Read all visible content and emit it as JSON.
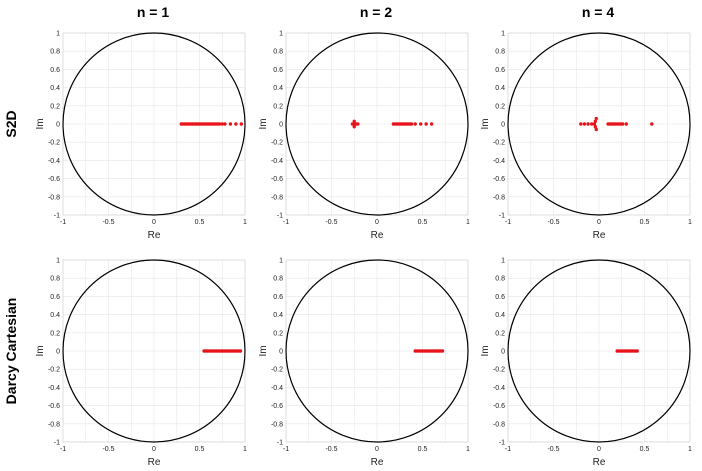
{
  "figure": {
    "col_titles": [
      "n = 1",
      "n = 2",
      "n = 4"
    ],
    "row_titles": [
      "S2D",
      "Darcy Cartesian"
    ]
  },
  "colors": {
    "points": "#e8141b",
    "circle": "#000000",
    "grid": "#e6e6e6"
  },
  "chart_data": [
    {
      "type": "scatter",
      "row": "S2D",
      "col": "n = 1",
      "xlabel": "Re",
      "ylabel": "Im",
      "xlim": [
        -1,
        1
      ],
      "ylim": [
        -1,
        1
      ],
      "xticks": [
        "-1",
        "-0.5",
        "0",
        "0.5",
        "1"
      ],
      "yticks": [
        "1",
        "0.8",
        "0.6",
        "0.4",
        "0.2",
        "0",
        "-0.2",
        "-0.4",
        "-0.6",
        "-0.8",
        "-1"
      ],
      "points": [
        [
          0.3,
          0
        ],
        [
          0.32,
          0
        ],
        [
          0.34,
          0
        ],
        [
          0.36,
          0
        ],
        [
          0.38,
          0
        ],
        [
          0.4,
          0
        ],
        [
          0.42,
          0
        ],
        [
          0.44,
          0
        ],
        [
          0.46,
          0
        ],
        [
          0.48,
          0
        ],
        [
          0.5,
          0
        ],
        [
          0.52,
          0
        ],
        [
          0.54,
          0
        ],
        [
          0.56,
          0
        ],
        [
          0.58,
          0
        ],
        [
          0.6,
          0
        ],
        [
          0.62,
          0
        ],
        [
          0.64,
          0
        ],
        [
          0.66,
          0
        ],
        [
          0.68,
          0
        ],
        [
          0.7,
          0
        ],
        [
          0.72,
          0
        ],
        [
          0.75,
          0
        ],
        [
          0.78,
          0
        ],
        [
          0.84,
          0
        ],
        [
          0.9,
          0
        ],
        [
          0.96,
          0
        ]
      ]
    },
    {
      "type": "scatter",
      "row": "S2D",
      "col": "n = 2",
      "xlabel": "Re",
      "ylabel": "Im",
      "xlim": [
        -1,
        1
      ],
      "ylim": [
        -1,
        1
      ],
      "xticks": [
        "-1",
        "-0.5",
        "0",
        "0.5",
        "1"
      ],
      "yticks": [
        "1",
        "0.8",
        "0.6",
        "0.4",
        "0.2",
        "0",
        "-0.2",
        "-0.4",
        "-0.6",
        "-0.8",
        "-1"
      ],
      "points": [
        [
          -0.27,
          0
        ],
        [
          -0.25,
          0
        ],
        [
          -0.23,
          0
        ],
        [
          -0.21,
          0
        ],
        [
          -0.25,
          0.03
        ],
        [
          -0.25,
          -0.03
        ],
        [
          0.18,
          0
        ],
        [
          0.2,
          0
        ],
        [
          0.22,
          0
        ],
        [
          0.24,
          0
        ],
        [
          0.26,
          0
        ],
        [
          0.28,
          0
        ],
        [
          0.3,
          0
        ],
        [
          0.32,
          0
        ],
        [
          0.34,
          0
        ],
        [
          0.36,
          0
        ],
        [
          0.38,
          0
        ],
        [
          0.42,
          0
        ],
        [
          0.48,
          0
        ],
        [
          0.54,
          0
        ],
        [
          0.6,
          0
        ]
      ]
    },
    {
      "type": "scatter",
      "row": "S2D",
      "col": "n = 4",
      "xlabel": "Re",
      "ylabel": "Im",
      "xlim": [
        -1,
        1
      ],
      "ylim": [
        -1,
        1
      ],
      "xticks": [
        "-1",
        "-0.5",
        "0",
        "0.5",
        "1"
      ],
      "yticks": [
        "1",
        "0.8",
        "0.6",
        "0.4",
        "0.2",
        "0",
        "-0.2",
        "-0.4",
        "-0.6",
        "-0.8",
        "-1"
      ],
      "points": [
        [
          -0.2,
          0
        ],
        [
          -0.16,
          0
        ],
        [
          -0.12,
          0
        ],
        [
          -0.08,
          0
        ],
        [
          -0.05,
          0
        ],
        [
          -0.03,
          0.06
        ],
        [
          -0.04,
          0.03
        ],
        [
          -0.04,
          -0.03
        ],
        [
          -0.03,
          -0.06
        ],
        [
          0.1,
          0
        ],
        [
          0.12,
          0
        ],
        [
          0.14,
          0
        ],
        [
          0.16,
          0
        ],
        [
          0.18,
          0
        ],
        [
          0.2,
          0
        ],
        [
          0.22,
          0
        ],
        [
          0.24,
          0
        ],
        [
          0.26,
          0
        ],
        [
          0.3,
          0
        ],
        [
          0.58,
          0
        ]
      ]
    },
    {
      "type": "scatter",
      "row": "Darcy Cartesian",
      "col": "n = 1",
      "xlabel": "Re",
      "ylabel": "Im",
      "xlim": [
        -1,
        1
      ],
      "ylim": [
        -1,
        1
      ],
      "xticks": [
        "-1",
        "-0.5",
        "0",
        "0.5",
        "1"
      ],
      "yticks": [
        "1",
        "0.8",
        "0.6",
        "0.4",
        "0.2",
        "0",
        "-0.2",
        "-0.4",
        "-0.6",
        "-0.8",
        "-1"
      ],
      "points": [
        [
          0.55,
          0
        ],
        [
          0.57,
          0
        ],
        [
          0.59,
          0
        ],
        [
          0.61,
          0
        ],
        [
          0.63,
          0
        ],
        [
          0.65,
          0
        ],
        [
          0.67,
          0
        ],
        [
          0.69,
          0
        ],
        [
          0.71,
          0
        ],
        [
          0.73,
          0
        ],
        [
          0.75,
          0
        ],
        [
          0.77,
          0
        ],
        [
          0.79,
          0
        ],
        [
          0.81,
          0
        ],
        [
          0.83,
          0
        ],
        [
          0.85,
          0
        ],
        [
          0.87,
          0
        ],
        [
          0.89,
          0
        ],
        [
          0.91,
          0
        ],
        [
          0.93,
          0
        ],
        [
          0.95,
          0
        ]
      ]
    },
    {
      "type": "scatter",
      "row": "Darcy Cartesian",
      "col": "n = 2",
      "xlabel": "Re",
      "ylabel": "Im",
      "xlim": [
        -1,
        1
      ],
      "ylim": [
        -1,
        1
      ],
      "xticks": [
        "-1",
        "-0.5",
        "0",
        "0.5",
        "1"
      ],
      "yticks": [
        "1",
        "0.8",
        "0.6",
        "0.4",
        "0.2",
        "0",
        "-0.2",
        "-0.4",
        "-0.6",
        "-0.8",
        "-1"
      ],
      "points": [
        [
          0.42,
          0
        ],
        [
          0.44,
          0
        ],
        [
          0.46,
          0
        ],
        [
          0.48,
          0
        ],
        [
          0.5,
          0
        ],
        [
          0.52,
          0
        ],
        [
          0.54,
          0
        ],
        [
          0.56,
          0
        ],
        [
          0.58,
          0
        ],
        [
          0.6,
          0
        ],
        [
          0.62,
          0
        ],
        [
          0.64,
          0
        ],
        [
          0.66,
          0
        ],
        [
          0.68,
          0
        ],
        [
          0.7,
          0
        ],
        [
          0.72,
          0
        ]
      ]
    },
    {
      "type": "scatter",
      "row": "Darcy Cartesian",
      "col": "n = 4",
      "xlabel": "Re",
      "ylabel": "Im",
      "xlim": [
        -1,
        1
      ],
      "ylim": [
        -1,
        1
      ],
      "xticks": [
        "-1",
        "-0.5",
        "0",
        "0.5",
        "1"
      ],
      "yticks": [
        "1",
        "0.8",
        "0.6",
        "0.4",
        "0.2",
        "0",
        "-0.2",
        "-0.4",
        "-0.6",
        "-0.8",
        "-1"
      ],
      "points": [
        [
          0.2,
          0
        ],
        [
          0.22,
          0
        ],
        [
          0.24,
          0
        ],
        [
          0.26,
          0
        ],
        [
          0.28,
          0
        ],
        [
          0.3,
          0
        ],
        [
          0.32,
          0
        ],
        [
          0.34,
          0
        ],
        [
          0.36,
          0
        ],
        [
          0.38,
          0
        ],
        [
          0.4,
          0
        ],
        [
          0.42,
          0
        ]
      ]
    }
  ]
}
